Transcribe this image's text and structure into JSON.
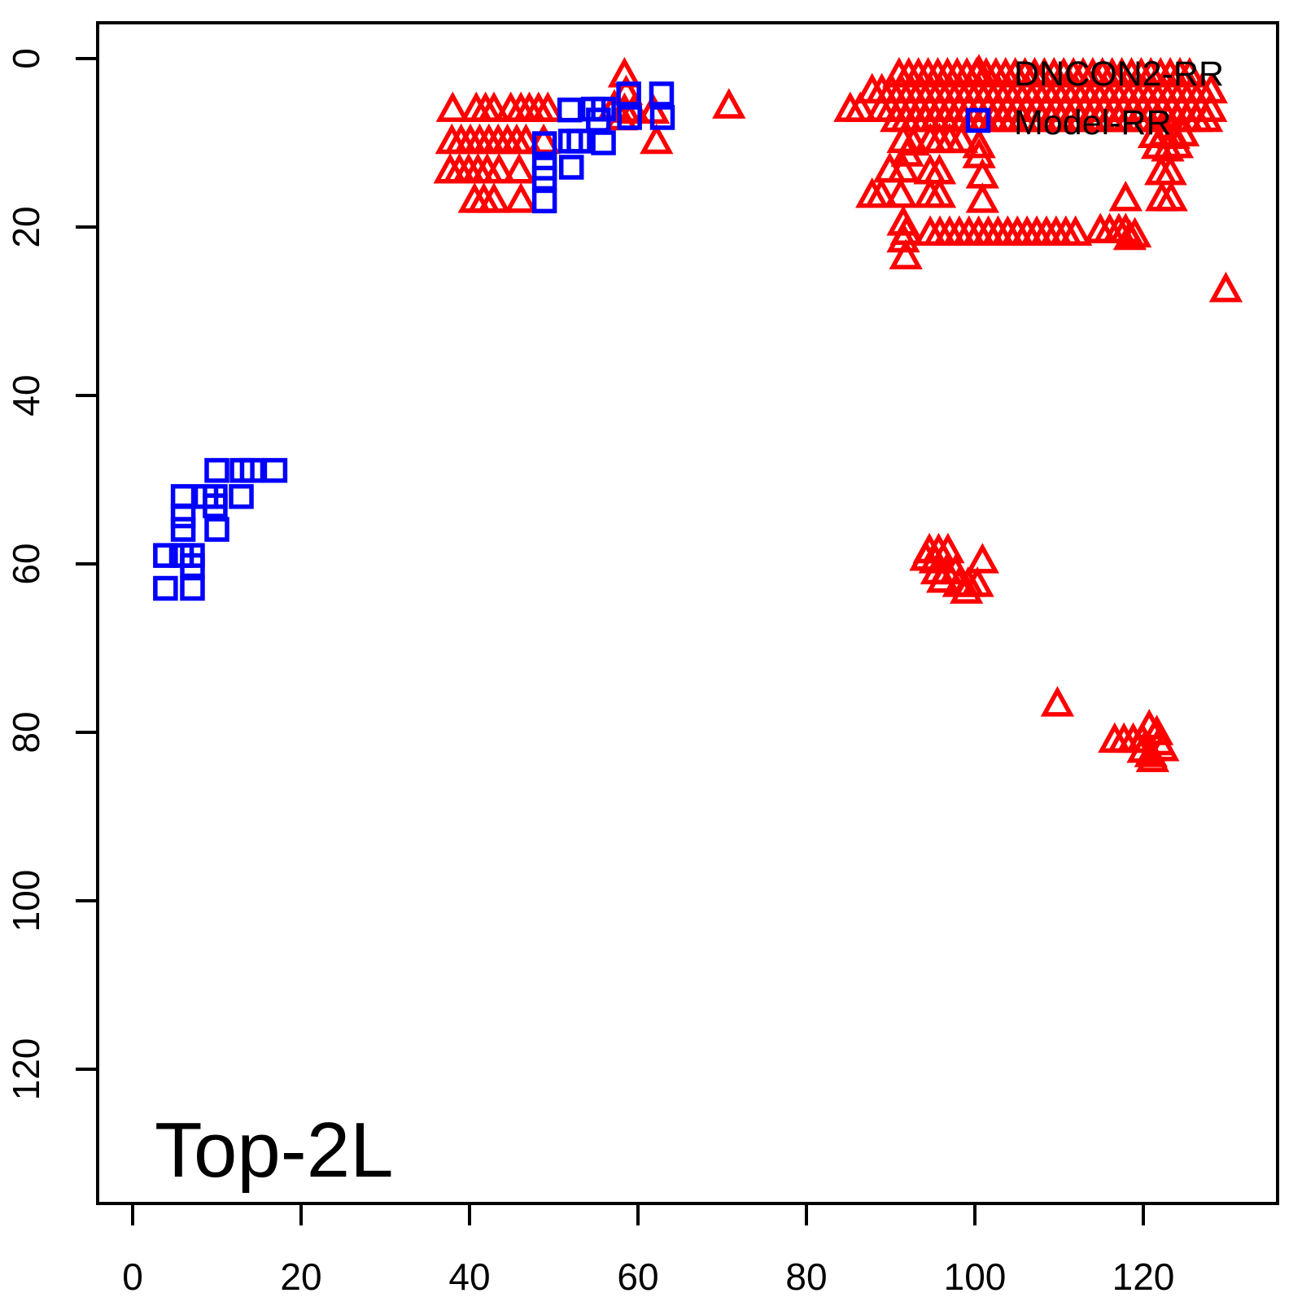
{
  "colors": {
    "axis": "#000000",
    "text": "#000000",
    "background": "#FFFFFF",
    "dncon2": "#FF0000",
    "model": "#0000FF"
  },
  "legend": {
    "items": [
      {
        "label": "DNCON2-RR",
        "marker": "triangle-icon",
        "color": "#FF0000"
      },
      {
        "label": "Model-RR",
        "marker": "square-icon",
        "color": "#0000FF"
      }
    ]
  },
  "chart_data": {
    "type": "scatter",
    "title": "Top-2L",
    "xlabel": "",
    "ylabel": "",
    "x_ticks": [
      0,
      20,
      40,
      60,
      80,
      100,
      120
    ],
    "y_ticks": [
      0,
      20,
      40,
      60,
      80,
      100,
      120
    ],
    "x_range": [
      -4.25,
      136
    ],
    "y_range": [
      -4.25,
      136
    ],
    "y_inverted": true,
    "grid": false,
    "legend_position": "top-right",
    "series": [
      {
        "name": "DNCON2-RR",
        "marker": "triangle",
        "color": "#FF0000",
        "rows": [
          {
            "y": 2.0,
            "x_start": 91.0,
            "step": 1.15,
            "n": 31
          },
          {
            "y": 3.9,
            "x_start": 87.8,
            "step": 1.15,
            "n": 36
          },
          {
            "y": 6.1,
            "x_start": 88.9,
            "step": 1.15,
            "n": 35
          },
          {
            "y": 7.3,
            "x_start": 90.7,
            "step": 1.15,
            "n": 33
          },
          {
            "y": 20.8,
            "x_start": 94.7,
            "step": 1.15,
            "n": 16
          }
        ],
        "points": [
          [
            38,
            6.1
          ],
          [
            40.8,
            6.1
          ],
          [
            41.9,
            6.1
          ],
          [
            42.9,
            6.1
          ],
          [
            44.9,
            6.1
          ],
          [
            46.1,
            6.1
          ],
          [
            47.1,
            6.1
          ],
          [
            48.2,
            6.1
          ],
          [
            49.3,
            6.1
          ],
          [
            37.9,
            9.9
          ],
          [
            39,
            9.9
          ],
          [
            40.1,
            9.9
          ],
          [
            41.2,
            9.9
          ],
          [
            42.3,
            9.9
          ],
          [
            43.4,
            9.9
          ],
          [
            44.5,
            9.9
          ],
          [
            45.6,
            9.9
          ],
          [
            46.7,
            9.9
          ],
          [
            48.8,
            9.9
          ],
          [
            37.7,
            13.4
          ],
          [
            38.8,
            13.4
          ],
          [
            39.9,
            13.4
          ],
          [
            41,
            13.4
          ],
          [
            42.1,
            13.4
          ],
          [
            43.5,
            13.4
          ],
          [
            45.9,
            13.4
          ],
          [
            40.6,
            16.9
          ],
          [
            41.7,
            16.9
          ],
          [
            42.9,
            16.9
          ],
          [
            46.1,
            16.9
          ],
          [
            58.4,
            2
          ],
          [
            58.6,
            4.1
          ],
          [
            57.2,
            5.8
          ],
          [
            58.4,
            6.2
          ],
          [
            59.5,
            6.3
          ],
          [
            58,
            7.1
          ],
          [
            61.8,
            6.3
          ],
          [
            62.2,
            9.9
          ],
          [
            70.8,
            5.7
          ],
          [
            85.2,
            6.1
          ],
          [
            86.4,
            6.1
          ],
          [
            91.5,
            9.8
          ],
          [
            92.7,
            10.1
          ],
          [
            94.7,
            9.8
          ],
          [
            95.8,
            9.8
          ],
          [
            97,
            9.8
          ],
          [
            98.4,
            9.8
          ],
          [
            100.5,
            10.4
          ],
          [
            92,
            11.4
          ],
          [
            100.5,
            11.6
          ],
          [
            89.9,
            13.3
          ],
          [
            91.5,
            13.3
          ],
          [
            94.7,
            13.5
          ],
          [
            95.8,
            13.5
          ],
          [
            100.9,
            14
          ],
          [
            122.1,
            13.6
          ],
          [
            123.2,
            13.6
          ],
          [
            87.8,
            16.3
          ],
          [
            88.9,
            16.3
          ],
          [
            91.2,
            16.3
          ],
          [
            94.7,
            16.3
          ],
          [
            95.8,
            16.3
          ],
          [
            100.9,
            16.9
          ],
          [
            117.9,
            16.7
          ],
          [
            122.2,
            16.7
          ],
          [
            123.3,
            16.7
          ],
          [
            121.3,
            9.2
          ],
          [
            122.5,
            9
          ],
          [
            123.6,
            9.3
          ],
          [
            124.7,
            9
          ],
          [
            121.7,
            10.5
          ],
          [
            122.9,
            10.8
          ],
          [
            124,
            10.4
          ],
          [
            91.5,
            19.6
          ],
          [
            91.9,
            20.7
          ],
          [
            91.5,
            21.6
          ],
          [
            91.8,
            23.6
          ],
          [
            114.9,
            20.5
          ],
          [
            116,
            20.5
          ],
          [
            117.1,
            20.5
          ],
          [
            117.9,
            20.5
          ],
          [
            119,
            21
          ],
          [
            118.4,
            21.3
          ],
          [
            129.8,
            27.5
          ],
          [
            94.6,
            58.5
          ],
          [
            95.7,
            58.5
          ],
          [
            96.8,
            58.5
          ],
          [
            94.2,
            59.4
          ],
          [
            95.3,
            59.7
          ],
          [
            100.9,
            59.7
          ],
          [
            95.5,
            61
          ],
          [
            96.6,
            61
          ],
          [
            97.7,
            61
          ],
          [
            96.2,
            62
          ],
          [
            98.1,
            62.5
          ],
          [
            99.2,
            62.5
          ],
          [
            100.3,
            62.5
          ],
          [
            99,
            63.3
          ],
          [
            109.8,
            76.7
          ],
          [
            116.6,
            81
          ],
          [
            117.7,
            81
          ],
          [
            118.8,
            81
          ],
          [
            119.9,
            81
          ],
          [
            120.7,
            79.4
          ],
          [
            121.6,
            80.1
          ],
          [
            120,
            82.2
          ],
          [
            120.9,
            82.7
          ],
          [
            121.9,
            81.3
          ],
          [
            121.1,
            83.3
          ],
          [
            122.3,
            82
          ]
        ]
      },
      {
        "name": "Model-RR",
        "marker": "square",
        "color": "#0000FF",
        "rows": [],
        "points": [
          [
            51.9,
            6.1
          ],
          [
            54.7,
            6
          ],
          [
            55.9,
            6
          ],
          [
            55.3,
            7.3
          ],
          [
            58.9,
            4.2
          ],
          [
            62.8,
            4.2
          ],
          [
            59,
            7
          ],
          [
            62.9,
            7
          ],
          [
            52,
            9.8
          ],
          [
            53,
            9.8
          ],
          [
            55.9,
            10
          ],
          [
            48.9,
            10.1
          ],
          [
            48.9,
            13
          ],
          [
            48.9,
            14.2
          ],
          [
            52.1,
            12.9
          ],
          [
            48.9,
            16.9
          ],
          [
            10,
            48.9
          ],
          [
            13,
            48.9
          ],
          [
            14.2,
            48.9
          ],
          [
            16.9,
            48.9
          ],
          [
            6,
            52
          ],
          [
            8.7,
            52
          ],
          [
            9.8,
            52
          ],
          [
            9.8,
            53.1
          ],
          [
            12.9,
            52
          ],
          [
            6,
            54.3
          ],
          [
            6,
            55.9
          ],
          [
            10,
            55.9
          ],
          [
            3.9,
            59
          ],
          [
            5.8,
            59
          ],
          [
            7.1,
            59
          ],
          [
            7.1,
            60.2
          ],
          [
            3.9,
            62.9
          ],
          [
            7.1,
            62.9
          ]
        ]
      }
    ]
  }
}
